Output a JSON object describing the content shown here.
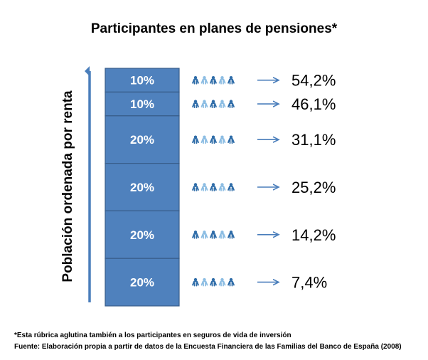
{
  "chart_data": {
    "type": "table",
    "title": "Participantes en planes de pensiones*",
    "ylabel": "Población ordenada por renta",
    "rows": [
      {
        "segment": "10%",
        "value": "54,2%",
        "segment_share": 10,
        "participation": 54.2
      },
      {
        "segment": "10%",
        "value": "46,1%",
        "segment_share": 10,
        "participation": 46.1
      },
      {
        "segment": "20%",
        "value": "31,1%",
        "segment_share": 20,
        "participation": 31.1
      },
      {
        "segment": "20%",
        "value": "25,2%",
        "segment_share": 20,
        "participation": 25.2
      },
      {
        "segment": "20%",
        "value": "14,2%",
        "segment_share": 20,
        "participation": 14.2
      },
      {
        "segment": "20%",
        "value": "7,4%",
        "segment_share": 20,
        "participation": 7.4
      }
    ]
  },
  "footnotes": {
    "note": "*Esta rúbrica aglutina también a los participantes en seguros de vida de inversión",
    "source": "Fuente: Elaboración propia a partir de datos de la Encuesta Financiera de las Familias del Banco de España  (2008)"
  },
  "colors": {
    "segment_fill": "#4f81bd",
    "segment_stroke": "#385d8a",
    "arrow": "#4a7ebb",
    "people_dark": "#2e6ca8",
    "people_light": "#8cbde3"
  }
}
